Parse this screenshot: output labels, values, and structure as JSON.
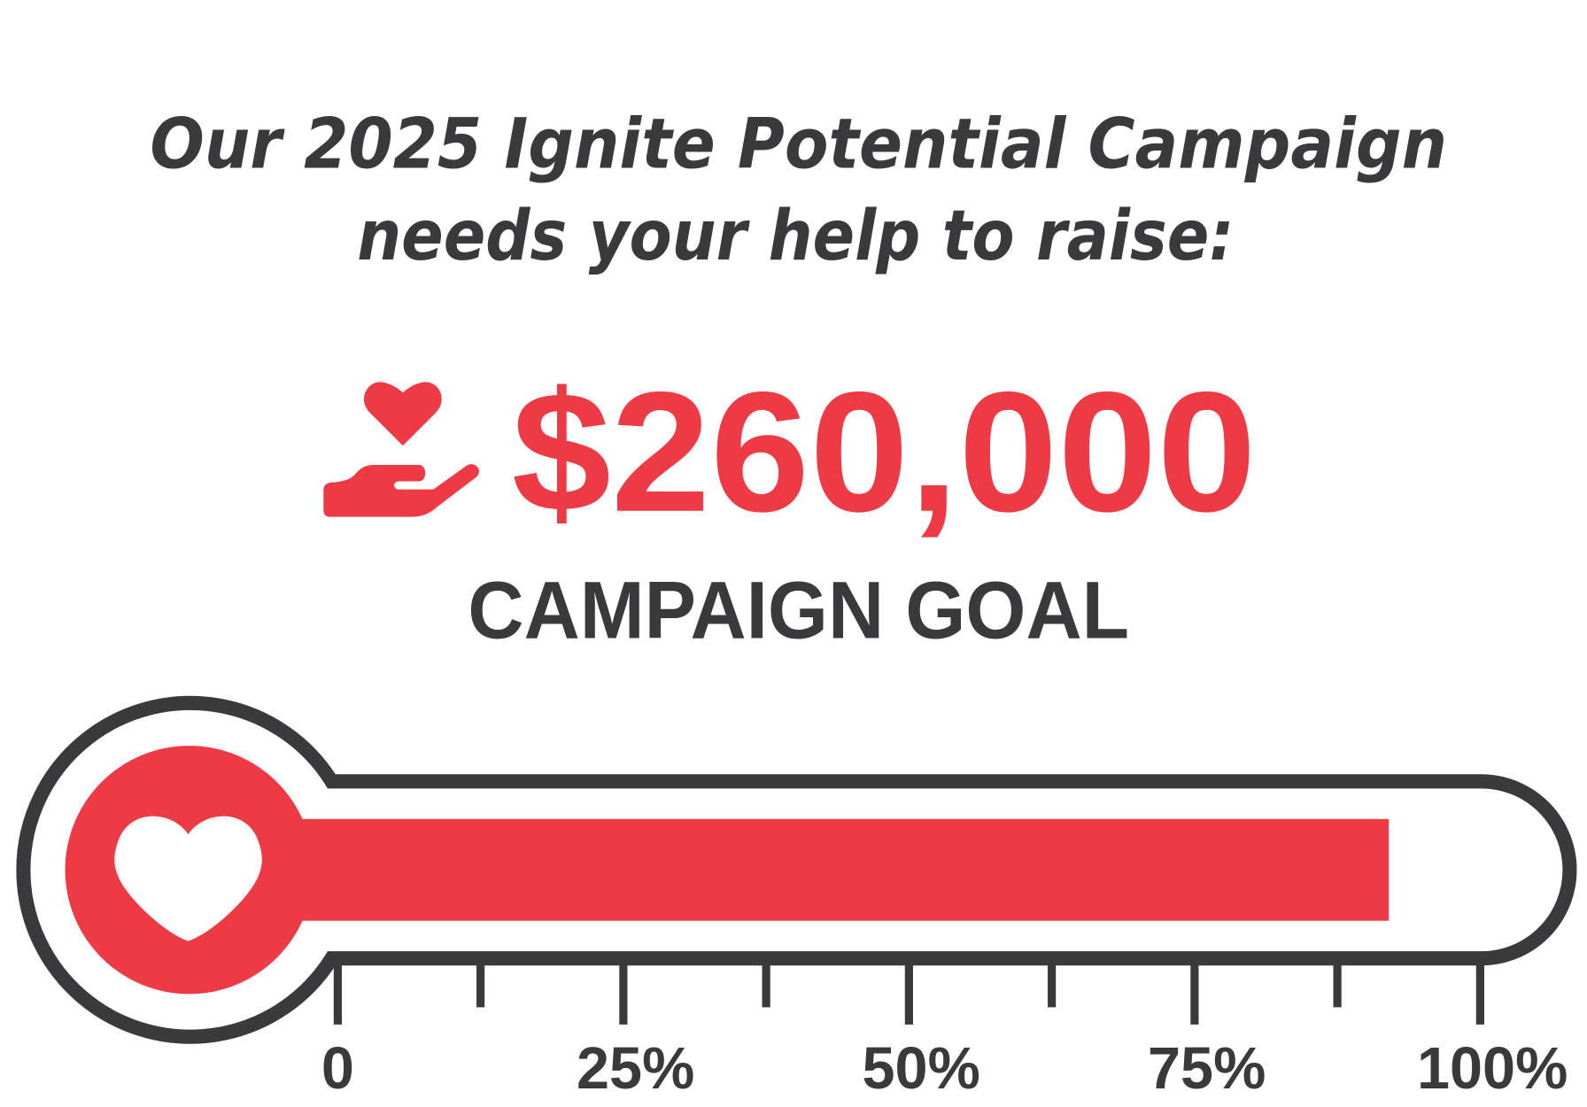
{
  "header": {
    "line1": "Our 2025 Ignite Potential Campaign",
    "line2": "needs your help to raise:"
  },
  "goal": {
    "amount": "$260,000",
    "label": "CAMPAIGN GOAL",
    "icon": "hand-heart-icon"
  },
  "thermometer": {
    "progress_percent": 92,
    "bulb_icon": "heart-icon",
    "tick_labels": [
      "0",
      "25%",
      "50%",
      "75%",
      "100%"
    ]
  },
  "colors": {
    "accent": "#ee3a45",
    "text": "#3a3a3c",
    "background": "#ffffff"
  }
}
